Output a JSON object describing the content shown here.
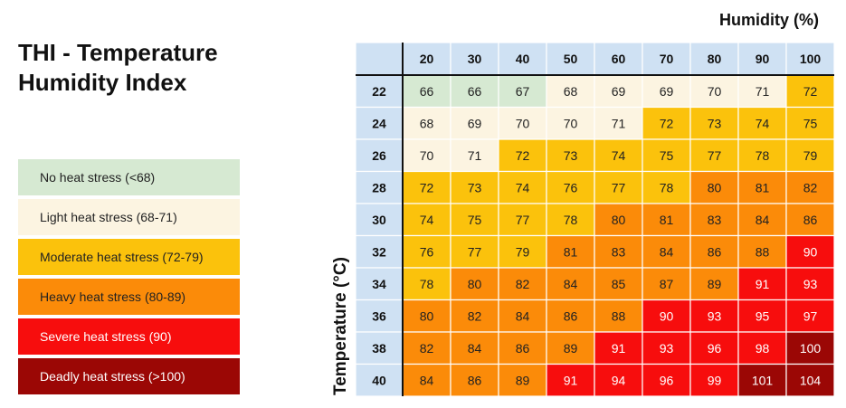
{
  "title_line1": "THI - Temperature",
  "title_line2": "Humidity Index",
  "legend": [
    {
      "label": "No heat stress (<68)",
      "color": "#d6e9d2",
      "text_style": "dark"
    },
    {
      "label": "Light heat stress (68-71)",
      "color": "#fcf4e1",
      "text_style": "dark"
    },
    {
      "label": "Moderate heat stress (72-79)",
      "color": "#fbc20c",
      "text_style": "dark"
    },
    {
      "label": "Heavy heat stress (80-89)",
      "color": "#fb8b09",
      "text_style": "dark"
    },
    {
      "label": "Severe heat stress (90)",
      "color": "#f70d0d",
      "text_style": "light"
    },
    {
      "label": "Deadly heat stress (>100)",
      "color": "#9b0705",
      "text_style": "light"
    }
  ],
  "chart_data": {
    "type": "heatmap",
    "xlabel": "Humidity (%)",
    "ylabel": "Temperature (°C)",
    "x": [
      20,
      30,
      40,
      50,
      60,
      70,
      80,
      90,
      100
    ],
    "y": [
      22,
      24,
      26,
      28,
      30,
      32,
      34,
      36,
      38,
      40
    ],
    "values": [
      [
        66,
        66,
        67,
        68,
        69,
        69,
        70,
        71,
        72
      ],
      [
        68,
        69,
        70,
        70,
        71,
        72,
        73,
        74,
        75
      ],
      [
        70,
        71,
        72,
        73,
        74,
        75,
        77,
        78,
        79
      ],
      [
        72,
        73,
        74,
        76,
        77,
        78,
        80,
        81,
        82
      ],
      [
        74,
        75,
        77,
        78,
        80,
        81,
        83,
        84,
        86
      ],
      [
        76,
        77,
        79,
        81,
        83,
        84,
        86,
        88,
        90
      ],
      [
        78,
        80,
        82,
        84,
        85,
        87,
        89,
        91,
        93
      ],
      [
        80,
        82,
        84,
        86,
        88,
        90,
        93,
        95,
        97
      ],
      [
        82,
        84,
        86,
        89,
        91,
        93,
        96,
        98,
        100
      ],
      [
        84,
        86,
        89,
        91,
        94,
        96,
        99,
        101,
        104
      ]
    ],
    "colors": {
      "header_bg": "#cfe1f3",
      "none": "#d6e9d2",
      "light": "#fcf4e1",
      "moderate": "#fbc20c",
      "heavy": "#fb8b09",
      "severe": "#f70d0d",
      "deadly": "#9b0705"
    }
  }
}
